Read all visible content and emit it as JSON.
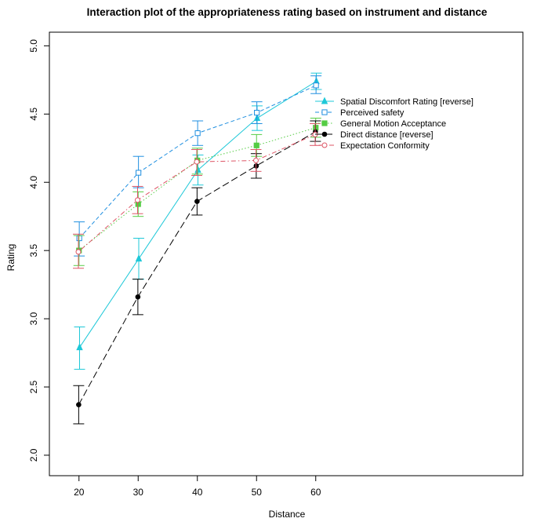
{
  "chart_data": {
    "type": "line",
    "title": "Interaction plot of the appropriateness rating based on instrument and distance",
    "xlabel": "Distance",
    "ylabel": "Rating",
    "x": [
      20,
      30,
      40,
      50,
      60
    ],
    "x_tick_labels": [
      "20",
      "30",
      "40",
      "50",
      "60"
    ],
    "xlim": [
      15,
      95
    ],
    "ylim": [
      1.85,
      5.1
    ],
    "y_ticks": [
      2.0,
      2.5,
      3.0,
      3.5,
      4.0,
      4.5,
      5.0
    ],
    "y_tick_labels": [
      "2.0",
      "2.5",
      "3.0",
      "3.5",
      "4.0",
      "4.5",
      "5.0"
    ],
    "grid": false,
    "legend_position": "top-right",
    "series": [
      {
        "name": "Spatial Discomfort Rating [reverse]",
        "color": "#1ec8d8",
        "marker": "triangle-filled",
        "line_style": "solid",
        "offset": 0.1,
        "values": [
          2.79,
          3.44,
          4.09,
          4.47,
          4.74
        ],
        "err_low": [
          2.63,
          3.29,
          3.98,
          4.38,
          4.68
        ],
        "err_high": [
          2.94,
          3.59,
          4.2,
          4.56,
          4.8
        ]
      },
      {
        "name": "Perceived safety",
        "color": "#1f8fe0",
        "marker": "square-open",
        "line_style": "dashed",
        "offset": 0.05,
        "values": [
          3.59,
          4.07,
          4.36,
          4.51,
          4.71
        ],
        "err_low": [
          3.46,
          3.96,
          4.27,
          4.43,
          4.65
        ],
        "err_high": [
          3.71,
          4.19,
          4.45,
          4.59,
          4.78
        ]
      },
      {
        "name": "General Motion Acceptance",
        "color": "#55cc44",
        "marker": "square-filled",
        "line_style": "dotted",
        "offset": 0.0,
        "values": [
          3.5,
          3.84,
          4.16,
          4.27,
          4.4
        ],
        "err_low": [
          3.39,
          3.75,
          4.06,
          4.19,
          4.33
        ],
        "err_high": [
          3.61,
          3.93,
          4.25,
          4.35,
          4.47
        ]
      },
      {
        "name": "Direct distance [reverse]",
        "color": "#000000",
        "marker": "circle-filled",
        "line_style": "longdash",
        "offset": -0.05,
        "values": [
          2.37,
          3.16,
          3.86,
          4.12,
          4.37
        ],
        "err_low": [
          2.23,
          3.03,
          3.76,
          4.03,
          4.3
        ],
        "err_high": [
          2.51,
          3.29,
          3.96,
          4.21,
          4.45
        ]
      },
      {
        "name": "Expectation Conformity",
        "color": "#dd5566",
        "marker": "circle-open",
        "line_style": "dotdash",
        "offset": -0.1,
        "values": [
          3.49,
          3.87,
          4.15,
          4.16,
          4.35
        ],
        "err_low": [
          3.37,
          3.77,
          4.05,
          4.08,
          4.27
        ],
        "err_high": [
          3.62,
          3.97,
          4.24,
          4.24,
          4.43
        ]
      }
    ]
  }
}
